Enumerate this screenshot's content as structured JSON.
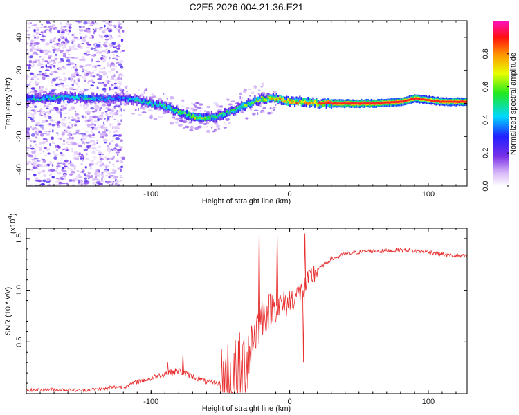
{
  "title": "C2E5.2026.004.21.36.E21",
  "chart_data": [
    {
      "type": "heatmap",
      "xlabel": "Height of straight line (km)",
      "ylabel": "Frequency (Hz)",
      "xlim": [
        -190,
        128
      ],
      "ylim": [
        -50,
        50
      ],
      "xticks": [
        -100,
        0,
        100
      ],
      "xtick_labels": [
        "-100",
        "0",
        "100"
      ],
      "yticks": [
        -40,
        -20,
        0,
        20,
        40
      ],
      "ytick_labels": [
        "-40",
        "-20",
        "0",
        "20",
        "40"
      ],
      "colorbar": {
        "label": "Normalized spectral amplitude",
        "range": [
          0,
          1
        ],
        "ticks": [
          0.0,
          0.2,
          0.4,
          0.6,
          0.8
        ],
        "tick_labels": [
          "0.0",
          "0.2",
          "0.4",
          "0.6",
          "0.8"
        ]
      },
      "noise_region_x": [
        -190,
        -120
      ],
      "ridge": {
        "x": [
          -190,
          -175,
          -160,
          -140,
          -122,
          -110,
          -100,
          -90,
          -80,
          -70,
          -60,
          -50,
          -40,
          -30,
          -20,
          -10,
          0,
          10,
          20,
          40,
          60,
          80,
          90,
          100,
          110,
          128
        ],
        "freq": [
          3,
          3,
          4,
          3,
          3,
          2,
          0,
          -2,
          -5,
          -8,
          -9,
          -7,
          -4,
          0,
          3,
          3,
          1,
          1,
          0,
          0,
          0,
          1,
          3,
          2,
          1,
          1
        ],
        "amplitude": [
          0.45,
          0.5,
          0.5,
          0.45,
          0.4,
          0.5,
          0.5,
          0.55,
          0.6,
          0.7,
          0.65,
          0.6,
          0.55,
          0.65,
          0.7,
          0.8,
          0.85,
          0.85,
          0.9,
          0.95,
          0.95,
          0.95,
          0.9,
          0.85,
          0.9,
          0.95
        ]
      }
    },
    {
      "type": "line",
      "xlabel": "Height of straight line (km)",
      "ylabel": "SNR (10 * v/v)",
      "multiplier_label": "(x10",
      "multiplier_exp": "4",
      "xlim": [
        -190,
        128
      ],
      "ylim": [
        0,
        1.6
      ],
      "xticks": [
        -100,
        0,
        100
      ],
      "xtick_labels": [
        "-100",
        "0",
        "100"
      ],
      "yticks": [
        0.5,
        1.0,
        1.5
      ],
      "ytick_labels": [
        "0.5",
        "1.0",
        "1.5"
      ],
      "color": "#e83030",
      "series": [
        {
          "name": "SNR",
          "x": [
            -190,
            -170,
            -150,
            -130,
            -120,
            -110,
            -100,
            -90,
            -80,
            -70,
            -60,
            -50,
            -45,
            -40,
            -35,
            -30,
            -25,
            -20,
            -15,
            -10,
            -5,
            0,
            5,
            10,
            15,
            20,
            25,
            30,
            40,
            50,
            60,
            70,
            80,
            90,
            100,
            110,
            120,
            128
          ],
          "y": [
            0.03,
            0.04,
            0.03,
            0.05,
            0.05,
            0.1,
            0.13,
            0.18,
            0.2,
            0.15,
            0.1,
            0.08,
            0.07,
            0.07,
            0.15,
            0.4,
            0.6,
            0.75,
            0.8,
            0.85,
            0.85,
            0.9,
            0.95,
            1.0,
            1.12,
            1.2,
            1.25,
            1.3,
            1.35,
            1.37,
            1.38,
            1.38,
            1.39,
            1.38,
            1.37,
            1.35,
            1.33,
            1.33
          ]
        }
      ],
      "spikes": [
        {
          "x": -22,
          "y": 1.58
        },
        {
          "x": -9,
          "y": 1.53
        },
        {
          "x": 11,
          "y": 1.55
        },
        {
          "x": 10,
          "y": 0.3
        },
        {
          "x": -77,
          "y": 0.38
        },
        {
          "x": -88,
          "y": 0.3
        }
      ]
    }
  ]
}
